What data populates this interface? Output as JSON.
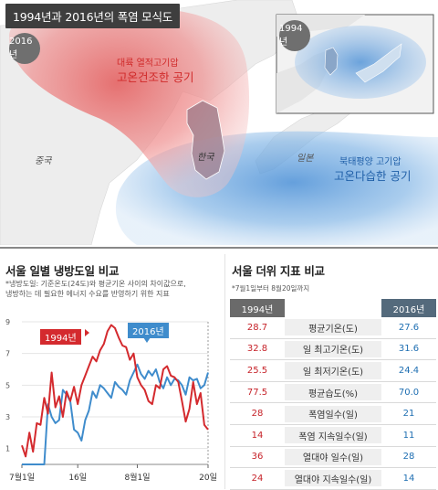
{
  "title": "1994년과 2016년의 폭염 모식도",
  "map": {
    "badge_2016": "2016년",
    "badge_1994": "1994년",
    "continental_label_1": "대륙 열적고기압",
    "continental_label_2": "고온건조한 공기",
    "pacific_label_1": "북태평양 고기압",
    "pacific_label_2": "고온다습한 공기",
    "china": "중국",
    "korea": "한국",
    "japan": "일본",
    "colors": {
      "continental": "#e04a4a",
      "pacific": "#3f86d0",
      "land": "#eeeeee",
      "sea": "#ffffff"
    }
  },
  "left": {
    "title": "서울 일별 냉방도일 비교",
    "note_1": "*냉방도일: 기준온도(24도)와 평균기온 사이의 차이값으로,",
    "note_2": "냉방하는 데 필요한 에너지 수요를 반영하기 위한 지표",
    "legend_1994": "1994년",
    "legend_2016": "2016년"
  },
  "chart_data": {
    "type": "line",
    "x": [
      "7월1일",
      "7월2일",
      "7월3일",
      "7월4일",
      "7월5일",
      "7월6일",
      "7월7일",
      "7월8일",
      "7월9일",
      "7월10일",
      "7월11일",
      "7월12일",
      "7월13일",
      "7월14일",
      "7월15일",
      "7월16일",
      "7월17일",
      "7월18일",
      "7월19일",
      "7월20일",
      "7월21일",
      "7월22일",
      "7월23일",
      "7월24일",
      "7월25일",
      "7월26일",
      "7월27일",
      "7월28일",
      "7월29일",
      "7월30일",
      "7월31일",
      "8월1일",
      "8월2일",
      "8월3일",
      "8월4일",
      "8월5일",
      "8월6일",
      "8월7일",
      "8월8일",
      "8월9일",
      "8월10일",
      "8월11일",
      "8월12일",
      "8월13일",
      "8월14일",
      "8월15일",
      "8월16일",
      "8월17일",
      "8월18일",
      "8월19일",
      "8월20일"
    ],
    "xticks": [
      "7월1일",
      "16일",
      "8월1일",
      "20일"
    ],
    "yticks": [
      "1",
      "3",
      "5",
      "7",
      "9"
    ],
    "ylim": [
      0,
      9
    ],
    "series": [
      {
        "name": "1994년",
        "color": "#d42a2e",
        "values": [
          1.2,
          0.5,
          2.0,
          0.8,
          2.6,
          2.5,
          4.2,
          3.2,
          5.8,
          3.6,
          4.3,
          3.0,
          4.6,
          4.0,
          4.9,
          3.8,
          5.0,
          5.6,
          6.2,
          6.8,
          6.5,
          7.2,
          7.6,
          8.4,
          8.8,
          8.6,
          8.0,
          7.5,
          7.4,
          6.6,
          7.0,
          5.5,
          5.0,
          4.7,
          4.0,
          3.8,
          5.0,
          4.8,
          6.0,
          6.2,
          5.6,
          5.5,
          5.2,
          4.0,
          2.7,
          3.5,
          5.2,
          3.8,
          4.5,
          2.5,
          2.2
        ]
      },
      {
        "name": "2016년",
        "color": "#3f8ccc",
        "values": [
          0.0,
          0.0,
          0.0,
          0.0,
          0.0,
          0.0,
          0.0,
          3.8,
          3.0,
          2.6,
          2.8,
          4.7,
          4.4,
          4.0,
          2.2,
          2.0,
          1.5,
          2.8,
          3.4,
          4.6,
          4.2,
          5.0,
          4.8,
          4.5,
          4.2,
          5.2,
          4.9,
          4.7,
          4.4,
          5.3,
          5.8,
          6.3,
          5.7,
          5.4,
          5.9,
          5.6,
          6.0,
          5.2,
          4.8,
          5.5,
          5.0,
          5.4,
          5.3,
          5.0,
          4.4,
          5.5,
          5.3,
          5.4,
          4.8,
          5.0,
          5.8
        ]
      }
    ]
  },
  "right": {
    "title": "서울 더위 지표 비교",
    "note": "*7월1일부터 8월20일까지",
    "header_1994": "1994년",
    "header_2016": "2016년",
    "rows": [
      {
        "v1994": "28.7",
        "label": "평균기온(도)",
        "v2016": "27.6"
      },
      {
        "v1994": "32.8",
        "label": "일 최고기온(도)",
        "v2016": "31.6"
      },
      {
        "v1994": "25.5",
        "label": "일 최저기온(도)",
        "v2016": "24.4"
      },
      {
        "v1994": "77.5",
        "label": "평균습도(%)",
        "v2016": "70.0"
      },
      {
        "v1994": "28",
        "label": "폭염일수(일)",
        "v2016": "21"
      },
      {
        "v1994": "14",
        "label": "폭염 지속일수(일)",
        "v2016": "11"
      },
      {
        "v1994": "36",
        "label": "열대야 일수(일)",
        "v2016": "28"
      },
      {
        "v1994": "24",
        "label": "열대야 지속일수(일)",
        "v2016": "14"
      }
    ]
  }
}
